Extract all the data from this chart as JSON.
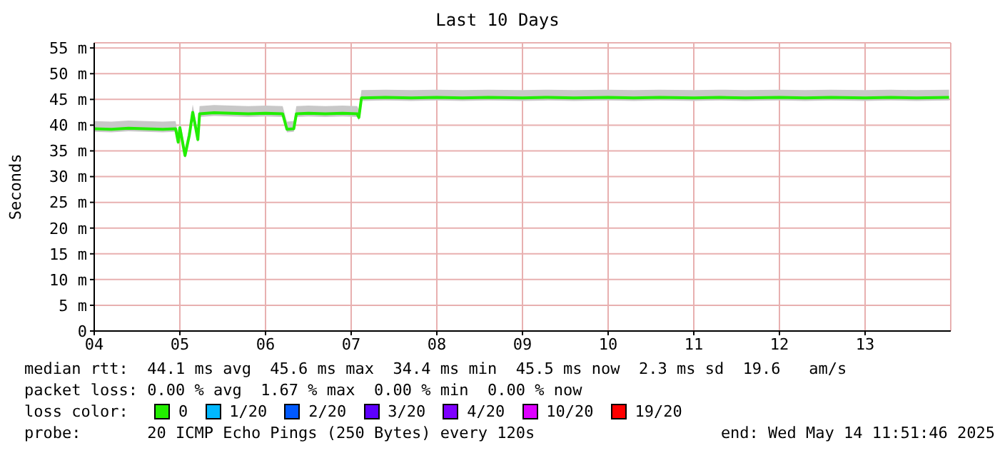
{
  "chart_data": {
    "type": "line",
    "title": "Last 10 Days",
    "ylabel": "Seconds",
    "legend_title": "loss color:",
    "legend": "bottom",
    "grid": true,
    "marker": "none",
    "line_style": "solid",
    "x": [
      4.0,
      4.2,
      4.4,
      4.6,
      4.8,
      4.95,
      4.98,
      5.0,
      5.06,
      5.11,
      5.15,
      5.19,
      5.21,
      5.23,
      5.4,
      5.6,
      5.8,
      6.0,
      6.2,
      6.25,
      6.33,
      6.36,
      6.5,
      6.7,
      6.9,
      7.07,
      7.09,
      7.12,
      7.4,
      7.7,
      8.0,
      8.3,
      8.6,
      9.0,
      9.3,
      9.6,
      10.0,
      10.3,
      10.6,
      11.0,
      11.3,
      11.6,
      12.0,
      12.3,
      12.6,
      13.0,
      13.3,
      13.6,
      13.98
    ],
    "xlim": [
      4,
      14
    ],
    "xticks": [
      {
        "value": 4,
        "label": "04"
      },
      {
        "value": 5,
        "label": "05"
      },
      {
        "value": 6,
        "label": "06"
      },
      {
        "value": 7,
        "label": "07"
      },
      {
        "value": 8,
        "label": "08"
      },
      {
        "value": 9,
        "label": "09"
      },
      {
        "value": 10,
        "label": "10"
      },
      {
        "value": 11,
        "label": "11"
      },
      {
        "value": 12,
        "label": "12"
      },
      {
        "value": 13,
        "label": "13"
      }
    ],
    "ylim": [
      0,
      56
    ],
    "yticks": [
      0,
      {
        "value": 5,
        "label": "5 m"
      },
      {
        "value": 10,
        "label": "10 m"
      },
      {
        "value": 15,
        "label": "15 m"
      },
      {
        "value": 20,
        "label": "20 m"
      },
      {
        "value": 25,
        "label": "25 m"
      },
      {
        "value": 30,
        "label": "30 m"
      },
      {
        "value": 35,
        "label": "35 m"
      },
      {
        "value": 40,
        "label": "40 m"
      },
      {
        "value": 45,
        "label": "45 m"
      },
      {
        "value": 50,
        "label": "50 m"
      },
      {
        "value": 55,
        "label": "55 m"
      }
    ],
    "series": [
      {
        "name": "0",
        "color": "#22ee00",
        "values": [
          39.3,
          39.2,
          39.4,
          39.3,
          39.2,
          39.3,
          36.7,
          39.5,
          34.1,
          38,
          42.5,
          39,
          37.2,
          42.2,
          42.4,
          42.3,
          42.2,
          42.3,
          42.2,
          39.2,
          39.3,
          42.2,
          42.3,
          42.2,
          42.3,
          42.2,
          41.5,
          45.3,
          45.4,
          45.3,
          45.4,
          45.3,
          45.4,
          45.3,
          45.4,
          45.3,
          45.4,
          45.3,
          45.4,
          45.3,
          45.4,
          45.3,
          45.4,
          45.3,
          45.4,
          45.3,
          45.4,
          45.3,
          45.4
        ],
        "lower": [
          38.7,
          38.6,
          38.8,
          38.7,
          38.6,
          38.7,
          36.1,
          38.9,
          33.5,
          37.4,
          41.9,
          38.4,
          36.6,
          41.6,
          41.8,
          41.7,
          41.6,
          41.7,
          41.6,
          38.6,
          38.7,
          41.6,
          41.7,
          41.6,
          41.7,
          41.6,
          40.9,
          44.7,
          44.8,
          44.7,
          44.8,
          44.7,
          44.8,
          44.7,
          44.8,
          44.7,
          44.8,
          44.7,
          44.8,
          44.7,
          44.8,
          44.7,
          44.8,
          44.7,
          44.8,
          44.7,
          44.8,
          44.7,
          44.8
        ],
        "upper": [
          40.8,
          40.7,
          40.9,
          40.8,
          40.7,
          40.8,
          38.2,
          41,
          35.6,
          39.5,
          44,
          40.5,
          38.7,
          43.7,
          43.9,
          43.8,
          43.7,
          43.8,
          43.7,
          40.7,
          40.8,
          43.7,
          43.8,
          43.7,
          43.8,
          43.7,
          43,
          46.8,
          46.9,
          46.8,
          46.9,
          46.8,
          46.9,
          46.8,
          46.9,
          46.8,
          46.9,
          46.8,
          46.9,
          46.8,
          46.9,
          46.8,
          46.9,
          46.8,
          46.9,
          46.8,
          46.9,
          46.8,
          46.9
        ]
      },
      {
        "name": "1/20",
        "color": "#00b8ff",
        "values": [
          null,
          null,
          null,
          null,
          null,
          null,
          null,
          null,
          null,
          null,
          null,
          null,
          null,
          null,
          null,
          null,
          null,
          null,
          null,
          null,
          null,
          null,
          null,
          null,
          null,
          null,
          null,
          null,
          null,
          null,
          null,
          null,
          null,
          null,
          null,
          null,
          null,
          null,
          null,
          null,
          null,
          null,
          null,
          null,
          null,
          null,
          null,
          null,
          null
        ]
      },
      {
        "name": "2/20",
        "color": "#0059ff",
        "values": [
          null,
          null,
          null,
          null,
          null,
          null,
          null,
          null,
          null,
          null,
          null,
          null,
          null,
          null,
          null,
          null,
          null,
          null,
          null,
          null,
          null,
          null,
          null,
          null,
          null,
          null,
          null,
          null,
          null,
          null,
          null,
          null,
          null,
          null,
          null,
          null,
          null,
          null,
          null,
          null,
          null,
          null,
          null,
          null,
          null,
          null,
          null,
          null,
          null
        ]
      },
      {
        "name": "3/20",
        "color": "#5e00ff",
        "values": [
          null,
          null,
          null,
          null,
          null,
          null,
          null,
          null,
          null,
          null,
          null,
          null,
          null,
          null,
          null,
          null,
          null,
          null,
          null,
          null,
          null,
          null,
          null,
          null,
          null,
          null,
          null,
          null,
          null,
          null,
          null,
          null,
          null,
          null,
          null,
          null,
          null,
          null,
          null,
          null,
          null,
          null,
          null,
          null,
          null,
          null,
          null,
          null,
          null
        ]
      },
      {
        "name": "4/20",
        "color": "#7e00ff",
        "values": [
          null,
          null,
          null,
          null,
          null,
          null,
          null,
          null,
          null,
          null,
          null,
          null,
          null,
          null,
          null,
          null,
          null,
          null,
          null,
          null,
          null,
          null,
          null,
          null,
          null,
          null,
          null,
          null,
          null,
          null,
          null,
          null,
          null,
          null,
          null,
          null,
          null,
          null,
          null,
          null,
          null,
          null,
          null,
          null,
          null,
          null,
          null,
          null,
          null
        ]
      },
      {
        "name": "10/20",
        "color": "#dd00ff",
        "values": [
          null,
          null,
          null,
          null,
          null,
          null,
          null,
          null,
          null,
          null,
          null,
          null,
          null,
          null,
          null,
          null,
          null,
          null,
          null,
          null,
          null,
          null,
          null,
          null,
          null,
          null,
          null,
          null,
          null,
          null,
          null,
          null,
          null,
          null,
          null,
          null,
          null,
          null,
          null,
          null,
          null,
          null,
          null,
          null,
          null,
          null,
          null,
          null,
          null
        ]
      },
      {
        "name": "19/20",
        "color": "#ff0000",
        "values": [
          null,
          null,
          null,
          null,
          null,
          null,
          null,
          null,
          null,
          null,
          null,
          null,
          null,
          null,
          null,
          null,
          null,
          null,
          null,
          null,
          null,
          null,
          null,
          null,
          null,
          null,
          null,
          null,
          null,
          null,
          null,
          null,
          null,
          null,
          null,
          null,
          null,
          null,
          null,
          null,
          null,
          null,
          null,
          null,
          null,
          null,
          null,
          null,
          null
        ]
      }
    ],
    "annotations": [
      "median rtt:  44.1 ms avg  45.6 ms max  34.4 ms min  45.5 ms now  2.3 ms sd  19.6   am/s",
      "packet loss: 0.00 % avg  1.67 % max  0.00 % min  0.00 % now",
      "probe:       20 ICMP Echo Pings (250 Bytes) every 120s",
      "end: Wed May 14 11:51:46 2025"
    ]
  }
}
